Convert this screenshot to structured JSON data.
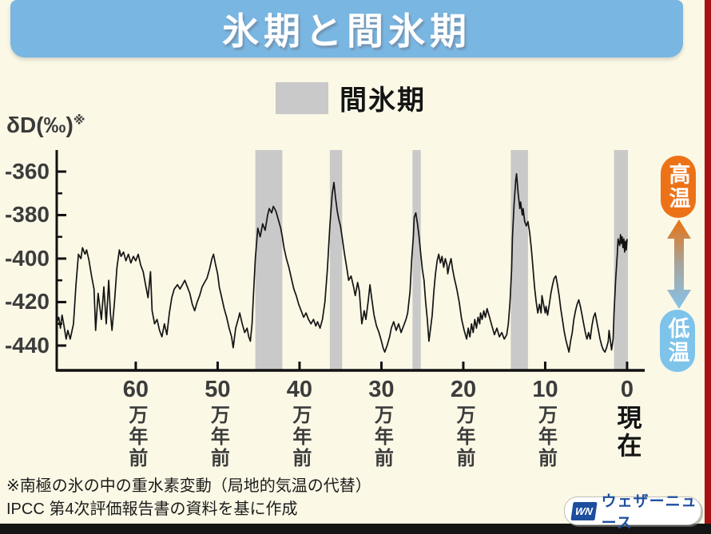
{
  "header": {
    "title": "氷期と間氷期"
  },
  "legend": {
    "label": "間氷期",
    "swatch_color": "#c9c9c9"
  },
  "annotation": {
    "high_label": "高温",
    "low_label": "低温",
    "high_color": "#ed7217",
    "low_color": "#7ec3ea"
  },
  "footer": {
    "line1": "※南極の氷の中の重水素変動（局地的気温の代替）",
    "line2": "IPCC 第4次評価報告書の資料を基に作成"
  },
  "logo": {
    "mark": "WN",
    "brand": "ウェザーニュース"
  },
  "colors": {
    "background": "#fbf8e6",
    "title_bar": "#79b6e1",
    "right_strip": "#a81111",
    "bottom_bar": "#141414",
    "band": "#c9c9c9",
    "line": "#141414",
    "axis": "#111111"
  },
  "chart_data": {
    "type": "line",
    "title": "氷期と間氷期",
    "ylabel": "δD(‰)",
    "ylabel_note": "※",
    "xlabel_unit": "万年前",
    "x_axis_direction": "age decreases to the right, 0 = present (現在)",
    "y_ticks": [
      -360,
      -380,
      -400,
      -420,
      -440
    ],
    "y_minor_ticks": [
      -370,
      -390,
      -410,
      -430
    ],
    "x_ticks": [
      {
        "value": "60",
        "unit": "万年前"
      },
      {
        "value": "50",
        "unit": "万年前"
      },
      {
        "value": "40",
        "unit": "万年前"
      },
      {
        "value": "30",
        "unit": "万年前"
      },
      {
        "value": "20",
        "unit": "万年前"
      },
      {
        "value": "10",
        "unit": "万年前"
      },
      {
        "value": "0",
        "unit": "現在"
      }
    ],
    "x_range_age": [
      69.75,
      -2.15
    ],
    "y_range": [
      -451.4,
      -350.1
    ],
    "grid": false,
    "legend_position": "top-center",
    "interglacial_bands_age": [
      [
        45.4,
        42.1
      ],
      [
        36.3,
        34.8
      ],
      [
        26.2,
        25.2
      ],
      [
        14.2,
        12.1
      ],
      [
        1.6,
        -0.1
      ]
    ],
    "series": [
      {
        "name": "δD (‰)",
        "points": [
          [
            69.6,
            -429
          ],
          [
            69.4,
            -427
          ],
          [
            69.2,
            -432
          ],
          [
            69.0,
            -426
          ],
          [
            68.8,
            -430
          ],
          [
            68.5,
            -437
          ],
          [
            68.3,
            -433
          ],
          [
            68.0,
            -437
          ],
          [
            67.6,
            -430
          ],
          [
            67.3,
            -412
          ],
          [
            67.0,
            -398
          ],
          [
            66.7,
            -400
          ],
          [
            66.5,
            -395
          ],
          [
            66.2,
            -398
          ],
          [
            66.0,
            -396
          ],
          [
            65.7,
            -401
          ],
          [
            65.4,
            -408
          ],
          [
            65.1,
            -414
          ],
          [
            64.9,
            -433
          ],
          [
            64.6,
            -416
          ],
          [
            64.2,
            -428
          ],
          [
            63.9,
            -413
          ],
          [
            63.6,
            -430
          ],
          [
            63.3,
            -410
          ],
          [
            63.1,
            -425
          ],
          [
            62.9,
            -433
          ],
          [
            62.6,
            -420
          ],
          [
            62.3,
            -404
          ],
          [
            62.0,
            -396
          ],
          [
            61.8,
            -399
          ],
          [
            61.5,
            -397
          ],
          [
            61.2,
            -401
          ],
          [
            60.9,
            -398
          ],
          [
            60.6,
            -402
          ],
          [
            60.3,
            -399
          ],
          [
            60.0,
            -401
          ],
          [
            59.7,
            -398
          ],
          [
            59.4,
            -403
          ],
          [
            59.1,
            -406
          ],
          [
            58.8,
            -412
          ],
          [
            58.5,
            -418
          ],
          [
            58.2,
            -406
          ],
          [
            58.0,
            -424
          ],
          [
            57.7,
            -430
          ],
          [
            57.4,
            -428
          ],
          [
            57.1,
            -433
          ],
          [
            56.8,
            -436
          ],
          [
            56.5,
            -430
          ],
          [
            56.2,
            -435
          ],
          [
            55.9,
            -425
          ],
          [
            55.6,
            -418
          ],
          [
            55.3,
            -414
          ],
          [
            54.9,
            -412
          ],
          [
            54.6,
            -414
          ],
          [
            54.3,
            -412
          ],
          [
            54.0,
            -410
          ],
          [
            53.7,
            -413
          ],
          [
            53.4,
            -416
          ],
          [
            53.1,
            -421
          ],
          [
            52.8,
            -424
          ],
          [
            52.5,
            -420
          ],
          [
            52.2,
            -417
          ],
          [
            51.9,
            -413
          ],
          [
            51.6,
            -411
          ],
          [
            51.3,
            -409
          ],
          [
            51.0,
            -405
          ],
          [
            50.7,
            -400
          ],
          [
            50.5,
            -398
          ],
          [
            50.3,
            -402
          ],
          [
            50.0,
            -407
          ],
          [
            49.8,
            -413
          ],
          [
            49.5,
            -418
          ],
          [
            49.2,
            -423
          ],
          [
            48.9,
            -427
          ],
          [
            48.6,
            -432
          ],
          [
            48.3,
            -436
          ],
          [
            48.1,
            -441
          ],
          [
            47.8,
            -432
          ],
          [
            47.5,
            -428
          ],
          [
            47.3,
            -425
          ],
          [
            47.0,
            -430
          ],
          [
            46.7,
            -434
          ],
          [
            46.4,
            -432
          ],
          [
            46.2,
            -436
          ],
          [
            46.0,
            -438
          ],
          [
            45.8,
            -430
          ],
          [
            45.6,
            -415
          ],
          [
            45.4,
            -400
          ],
          [
            45.1,
            -386
          ],
          [
            44.8,
            -390
          ],
          [
            44.5,
            -384
          ],
          [
            44.2,
            -387
          ],
          [
            43.9,
            -380
          ],
          [
            43.7,
            -377
          ],
          [
            43.4,
            -379
          ],
          [
            43.2,
            -376
          ],
          [
            42.9,
            -378
          ],
          [
            42.6,
            -382
          ],
          [
            42.3,
            -386
          ],
          [
            42.1,
            -390
          ],
          [
            41.9,
            -395
          ],
          [
            41.6,
            -400
          ],
          [
            41.3,
            -404
          ],
          [
            41.0,
            -409
          ],
          [
            40.7,
            -414
          ],
          [
            40.4,
            -417
          ],
          [
            40.1,
            -421
          ],
          [
            39.8,
            -424
          ],
          [
            39.5,
            -427
          ],
          [
            39.2,
            -425
          ],
          [
            38.9,
            -428
          ],
          [
            38.6,
            -430
          ],
          [
            38.3,
            -428
          ],
          [
            38.0,
            -431
          ],
          [
            37.8,
            -429
          ],
          [
            37.5,
            -432
          ],
          [
            37.2,
            -428
          ],
          [
            36.9,
            -420
          ],
          [
            36.6,
            -405
          ],
          [
            36.3,
            -385
          ],
          [
            36.0,
            -370
          ],
          [
            35.8,
            -365
          ],
          [
            35.6,
            -372
          ],
          [
            35.4,
            -378
          ],
          [
            35.2,
            -382
          ],
          [
            35.0,
            -385
          ],
          [
            34.8,
            -390
          ],
          [
            34.5,
            -398
          ],
          [
            34.2,
            -405
          ],
          [
            34.0,
            -410
          ],
          [
            33.7,
            -408
          ],
          [
            33.4,
            -413
          ],
          [
            33.2,
            -417
          ],
          [
            32.9,
            -411
          ],
          [
            32.7,
            -415
          ],
          [
            32.4,
            -430
          ],
          [
            32.1,
            -424
          ],
          [
            31.9,
            -428
          ],
          [
            31.6,
            -419
          ],
          [
            31.4,
            -412
          ],
          [
            31.2,
            -418
          ],
          [
            30.9,
            -426
          ],
          [
            30.6,
            -431
          ],
          [
            30.3,
            -434
          ],
          [
            30.0,
            -438
          ],
          [
            29.8,
            -441
          ],
          [
            29.6,
            -443
          ],
          [
            29.3,
            -440
          ],
          [
            29.0,
            -436
          ],
          [
            28.8,
            -432
          ],
          [
            28.5,
            -429
          ],
          [
            28.2,
            -433
          ],
          [
            27.9,
            -430
          ],
          [
            27.6,
            -434
          ],
          [
            27.3,
            -431
          ],
          [
            27.0,
            -428
          ],
          [
            26.8,
            -425
          ],
          [
            26.5,
            -415
          ],
          [
            26.3,
            -400
          ],
          [
            26.1,
            -390
          ],
          [
            26.0,
            -381
          ],
          [
            25.8,
            -379
          ],
          [
            25.6,
            -384
          ],
          [
            25.4,
            -390
          ],
          [
            25.2,
            -398
          ],
          [
            25.0,
            -405
          ],
          [
            24.8,
            -410
          ],
          [
            24.6,
            -420
          ],
          [
            24.4,
            -428
          ],
          [
            24.2,
            -438
          ],
          [
            24.0,
            -432
          ],
          [
            23.8,
            -426
          ],
          [
            23.6,
            -415
          ],
          [
            23.4,
            -407
          ],
          [
            23.2,
            -401
          ],
          [
            23.0,
            -398
          ],
          [
            22.8,
            -402
          ],
          [
            22.6,
            -399
          ],
          [
            22.4,
            -404
          ],
          [
            22.2,
            -400
          ],
          [
            22.0,
            -403
          ],
          [
            21.9,
            -407
          ],
          [
            21.7,
            -403
          ],
          [
            21.5,
            -400
          ],
          [
            21.3,
            -405
          ],
          [
            21.1,
            -409
          ],
          [
            20.8,
            -414
          ],
          [
            20.5,
            -420
          ],
          [
            20.2,
            -428
          ],
          [
            19.9,
            -433
          ],
          [
            19.6,
            -437
          ],
          [
            19.4,
            -432
          ],
          [
            19.2,
            -436
          ],
          [
            19.0,
            -430
          ],
          [
            18.8,
            -434
          ],
          [
            18.6,
            -428
          ],
          [
            18.4,
            -432
          ],
          [
            18.2,
            -427
          ],
          [
            18.0,
            -430
          ],
          [
            17.9,
            -425
          ],
          [
            17.7,
            -428
          ],
          [
            17.5,
            -424
          ],
          [
            17.3,
            -427
          ],
          [
            17.1,
            -423
          ],
          [
            16.8,
            -427
          ],
          [
            16.5,
            -431
          ],
          [
            16.2,
            -435
          ],
          [
            15.9,
            -432
          ],
          [
            15.6,
            -436
          ],
          [
            15.3,
            -434
          ],
          [
            15.0,
            -437
          ],
          [
            14.7,
            -435
          ],
          [
            14.5,
            -430
          ],
          [
            14.3,
            -420
          ],
          [
            14.1,
            -405
          ],
          [
            14.0,
            -390
          ],
          [
            13.8,
            -375
          ],
          [
            13.6,
            -364
          ],
          [
            13.5,
            -361
          ],
          [
            13.3,
            -370
          ],
          [
            13.1,
            -377
          ],
          [
            13.0,
            -374
          ],
          [
            12.8,
            -380
          ],
          [
            12.7,
            -377
          ],
          [
            12.5,
            -383
          ],
          [
            12.3,
            -385
          ],
          [
            12.1,
            -383
          ],
          [
            11.9,
            -388
          ],
          [
            11.7,
            -395
          ],
          [
            11.5,
            -404
          ],
          [
            11.3,
            -413
          ],
          [
            11.1,
            -420
          ],
          [
            10.9,
            -425
          ],
          [
            10.7,
            -421
          ],
          [
            10.5,
            -425
          ],
          [
            10.4,
            -417
          ],
          [
            10.2,
            -421
          ],
          [
            10.0,
            -425
          ],
          [
            9.9,
            -422
          ],
          [
            9.7,
            -426
          ],
          [
            9.5,
            -421
          ],
          [
            9.3,
            -416
          ],
          [
            9.1,
            -412
          ],
          [
            8.9,
            -409
          ],
          [
            8.7,
            -408
          ],
          [
            8.5,
            -412
          ],
          [
            8.3,
            -417
          ],
          [
            8.1,
            -423
          ],
          [
            7.9,
            -428
          ],
          [
            7.7,
            -433
          ],
          [
            7.5,
            -437
          ],
          [
            7.3,
            -440
          ],
          [
            7.1,
            -443
          ],
          [
            6.9,
            -438
          ],
          [
            6.7,
            -434
          ],
          [
            6.5,
            -428
          ],
          [
            6.3,
            -424
          ],
          [
            6.1,
            -421
          ],
          [
            5.9,
            -419
          ],
          [
            5.7,
            -422
          ],
          [
            5.5,
            -426
          ],
          [
            5.3,
            -430
          ],
          [
            5.1,
            -434
          ],
          [
            4.9,
            -437
          ],
          [
            4.7,
            -434
          ],
          [
            4.5,
            -437
          ],
          [
            4.3,
            -431
          ],
          [
            4.1,
            -427
          ],
          [
            3.9,
            -425
          ],
          [
            3.7,
            -429
          ],
          [
            3.5,
            -433
          ],
          [
            3.3,
            -437
          ],
          [
            3.1,
            -440
          ],
          [
            2.9,
            -442
          ],
          [
            2.7,
            -443
          ],
          [
            2.5,
            -441
          ],
          [
            2.3,
            -438
          ],
          [
            2.2,
            -433
          ],
          [
            2.0,
            -439
          ],
          [
            1.9,
            -442
          ],
          [
            1.7,
            -437
          ],
          [
            1.6,
            -425
          ],
          [
            1.4,
            -410
          ],
          [
            1.2,
            -398
          ],
          [
            1.1,
            -391
          ],
          [
            0.9,
            -394
          ],
          [
            0.8,
            -389
          ],
          [
            0.7,
            -393
          ],
          [
            0.6,
            -390
          ],
          [
            0.5,
            -395
          ],
          [
            0.4,
            -391
          ],
          [
            0.3,
            -397
          ],
          [
            0.2,
            -392
          ],
          [
            0.1,
            -396
          ],
          [
            0.0,
            -391
          ]
        ]
      }
    ]
  }
}
